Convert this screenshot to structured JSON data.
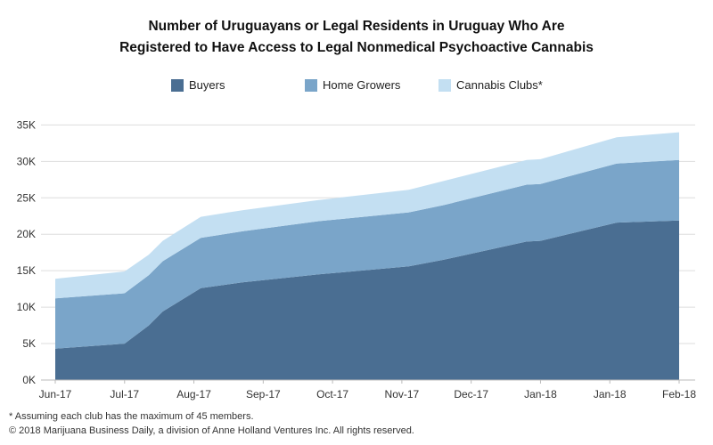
{
  "chart_data": {
    "type": "area",
    "stacked": true,
    "title_lines": [
      "Number of Uruguayans or Legal Residents in Uruguay Who Are",
      "Registered to Have Access to Legal Nonmedical Psychoactive Cannabis"
    ],
    "x_tick_labels": [
      "Jun-17",
      "Jul-17",
      "Aug-17",
      "Sep-17",
      "Oct-17",
      "Nov-17",
      "Dec-17",
      "Jan-18",
      "Jan-18",
      "Feb-18"
    ],
    "y_tick_labels": [
      "0K",
      "5K",
      "10K",
      "15K",
      "20K",
      "25K",
      "30K",
      "35K"
    ],
    "ylim": [
      0,
      37000
    ],
    "grid": "horizontal",
    "legend_position": "top",
    "x": [
      0,
      1.0,
      1.35,
      1.55,
      2.1,
      2.7,
      3.8,
      5.1,
      5.6,
      6.8,
      7.0,
      8.1,
      9.0
    ],
    "series": [
      {
        "name": "Buyers",
        "color": "#4a6e92",
        "values": [
          4300,
          5000,
          7500,
          9400,
          12600,
          13400,
          14500,
          15600,
          16500,
          19000,
          19100,
          21600,
          21900
        ]
      },
      {
        "name": "Home Growers",
        "color": "#7aa5c9",
        "values": [
          6900,
          6900,
          6900,
          6900,
          6900,
          7000,
          7300,
          7400,
          7500,
          7800,
          7800,
          8100,
          8300
        ]
      },
      {
        "name": "Cannabis Clubs",
        "name_mark": "*",
        "color": "#c3dff2",
        "values": [
          2700,
          3000,
          2800,
          2800,
          2900,
          2900,
          2900,
          3100,
          3300,
          3400,
          3400,
          3600,
          3800
        ]
      }
    ]
  },
  "footnotes": [
    "* Assuming each club has the maximum of 45 members.",
    "© 2018 Marijuana Business Daily, a division of Anne Holland Ventures Inc. All rights reserved."
  ]
}
